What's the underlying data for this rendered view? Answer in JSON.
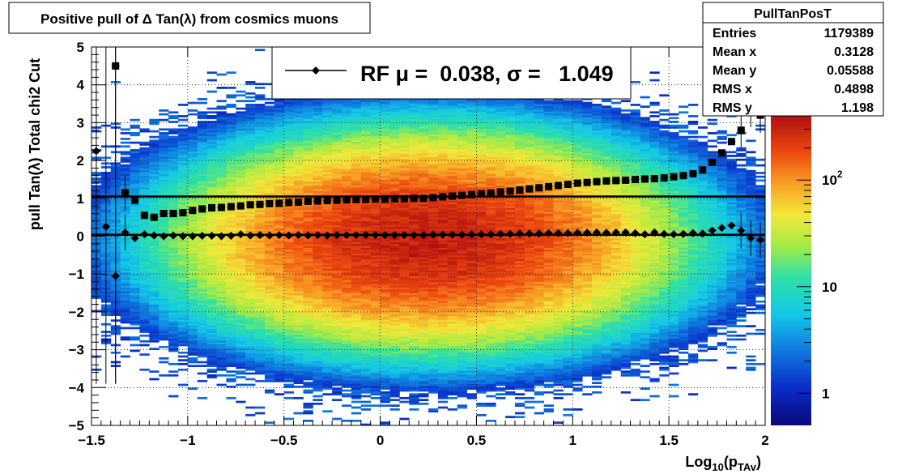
{
  "chart_data": {
    "type": "heatmap",
    "title": "Positive pull of Δ Tan(λ) from cosmics muons",
    "xlabel": "Log",
    "xlabel_sub": "10",
    "xlabel_tail": "(p",
    "xlabel_sub2": "TAv",
    "xlabel_close": ")",
    "ylabel": "pull Tan(λ)  Total chi2 Cut",
    "xlim": [
      -1.5,
      2.0
    ],
    "ylim": [
      -5,
      5
    ],
    "xticks": [
      -1.5,
      -1,
      -0.5,
      0,
      0.5,
      1,
      1.5,
      2
    ],
    "xtick_labels": [
      "−1.5",
      "−1",
      "−0.5",
      "0",
      "0.5",
      "1",
      "1.5",
      "2"
    ],
    "yticks": [
      5,
      4,
      3,
      2,
      1,
      0,
      -1,
      -2,
      -3,
      -4,
      -5
    ],
    "ytick_labels": [
      "5",
      "4",
      "3",
      "2",
      "1",
      "0",
      "−1",
      "−2",
      "−3",
      "−4",
      "−5"
    ],
    "grid": true,
    "colorbar": {
      "scale": "log",
      "range": [
        0.5,
        400
      ],
      "labels": [
        {
          "value": 1,
          "text": "1"
        },
        {
          "value": 10,
          "text": "10"
        },
        {
          "value": 100,
          "text": "10",
          "exp": "2"
        }
      ]
    },
    "stats_box": {
      "title": "PullTanPosT",
      "rows": [
        {
          "label": "Entries",
          "value": "1179389"
        },
        {
          "label": "Mean x",
          "value": "0.3128"
        },
        {
          "label": "Mean y",
          "value": "0.05588"
        },
        {
          "label": "RMS x",
          "value": "0.4898"
        },
        {
          "label": "RMS y",
          "value": "1.198"
        }
      ]
    },
    "legend": {
      "placement": "top-center",
      "text": "RF μ =  0.038, σ =   1.049"
    },
    "distribution": {
      "x_center": 0.25,
      "x_sigma": 0.55,
      "y_mean": -0.1,
      "y_sigma": 1.2,
      "peak": 330
    },
    "series": [
      {
        "name": "sigma",
        "marker": "square",
        "points": [
          [
            -1.375,
            4.5
          ],
          [
            -1.325,
            1.15
          ],
          [
            -1.275,
            0.95
          ],
          [
            -1.225,
            0.55
          ],
          [
            -1.175,
            0.5
          ],
          [
            -1.125,
            0.6
          ],
          [
            -1.075,
            0.6
          ],
          [
            -1.025,
            0.62
          ],
          [
            -0.975,
            0.68
          ],
          [
            -0.925,
            0.72
          ],
          [
            -0.875,
            0.75
          ],
          [
            -0.825,
            0.76
          ],
          [
            -0.775,
            0.78
          ],
          [
            -0.725,
            0.8
          ],
          [
            -0.675,
            0.83
          ],
          [
            -0.625,
            0.84
          ],
          [
            -0.575,
            0.86
          ],
          [
            -0.525,
            0.87
          ],
          [
            -0.475,
            0.89
          ],
          [
            -0.425,
            0.9
          ],
          [
            -0.375,
            0.92
          ],
          [
            -0.325,
            0.93
          ],
          [
            -0.275,
            0.94
          ],
          [
            -0.225,
            0.95
          ],
          [
            -0.175,
            0.96
          ],
          [
            -0.125,
            0.97
          ],
          [
            -0.075,
            0.97
          ],
          [
            -0.025,
            0.98
          ],
          [
            0.025,
            0.98
          ],
          [
            0.075,
            0.99
          ],
          [
            0.125,
            0.99
          ],
          [
            0.175,
            1.0
          ],
          [
            0.225,
            1.0
          ],
          [
            0.275,
            1.02
          ],
          [
            0.325,
            1.04
          ],
          [
            0.375,
            1.06
          ],
          [
            0.425,
            1.08
          ],
          [
            0.475,
            1.1
          ],
          [
            0.525,
            1.12
          ],
          [
            0.575,
            1.14
          ],
          [
            0.625,
            1.17
          ],
          [
            0.675,
            1.19
          ],
          [
            0.725,
            1.22
          ],
          [
            0.775,
            1.25
          ],
          [
            0.825,
            1.28
          ],
          [
            0.875,
            1.31
          ],
          [
            0.925,
            1.34
          ],
          [
            0.975,
            1.37
          ],
          [
            1.025,
            1.4
          ],
          [
            1.075,
            1.42
          ],
          [
            1.125,
            1.44
          ],
          [
            1.175,
            1.46
          ],
          [
            1.225,
            1.47
          ],
          [
            1.275,
            1.48
          ],
          [
            1.325,
            1.5
          ],
          [
            1.375,
            1.51
          ],
          [
            1.425,
            1.52
          ],
          [
            1.475,
            1.54
          ],
          [
            1.525,
            1.57
          ],
          [
            1.575,
            1.6
          ],
          [
            1.625,
            1.65
          ],
          [
            1.675,
            1.75
          ],
          [
            1.725,
            1.95
          ],
          [
            1.775,
            2.2
          ],
          [
            1.825,
            2.5
          ],
          [
            1.875,
            2.8
          ],
          [
            1.925,
            3.35
          ],
          [
            1.975,
            3.2
          ]
        ]
      },
      {
        "name": "mu",
        "marker": "diamond",
        "points": [
          [
            -1.475,
            2.25
          ],
          [
            -1.425,
            0.25
          ],
          [
            -1.375,
            -1.05
          ],
          [
            -1.325,
            0.1
          ],
          [
            -1.275,
            -0.05
          ],
          [
            -1.225,
            0.05
          ],
          [
            -1.175,
            0.02
          ],
          [
            -1.125,
            0.0
          ],
          [
            -1.075,
            0.02
          ],
          [
            -1.025,
            0.0
          ],
          [
            -0.975,
            0.0
          ],
          [
            -0.925,
            0.01
          ],
          [
            -0.875,
            0.01
          ],
          [
            -0.825,
            0.0
          ],
          [
            -0.775,
            0.01
          ],
          [
            -0.725,
            0.05
          ],
          [
            -0.675,
            0.02
          ],
          [
            -0.625,
            0.03
          ],
          [
            -0.575,
            0.02
          ],
          [
            -0.525,
            0.03
          ],
          [
            -0.475,
            0.02
          ],
          [
            -0.425,
            0.03
          ],
          [
            -0.375,
            0.02
          ],
          [
            -0.325,
            0.03
          ],
          [
            -0.275,
            0.02
          ],
          [
            -0.225,
            0.03
          ],
          [
            -0.175,
            0.03
          ],
          [
            -0.125,
            0.03
          ],
          [
            -0.075,
            0.03
          ],
          [
            -0.025,
            0.03
          ],
          [
            0.025,
            0.03
          ],
          [
            0.075,
            0.03
          ],
          [
            0.125,
            0.03
          ],
          [
            0.175,
            0.03
          ],
          [
            0.225,
            0.03
          ],
          [
            0.275,
            0.04
          ],
          [
            0.325,
            0.04
          ],
          [
            0.375,
            0.04
          ],
          [
            0.425,
            0.04
          ],
          [
            0.475,
            0.05
          ],
          [
            0.525,
            0.05
          ],
          [
            0.575,
            0.05
          ],
          [
            0.625,
            0.06
          ],
          [
            0.675,
            0.06
          ],
          [
            0.725,
            0.07
          ],
          [
            0.775,
            0.07
          ],
          [
            0.825,
            0.07
          ],
          [
            0.875,
            0.08
          ],
          [
            0.925,
            0.08
          ],
          [
            0.975,
            0.08
          ],
          [
            1.025,
            0.09
          ],
          [
            1.075,
            0.09
          ],
          [
            1.125,
            0.1
          ],
          [
            1.175,
            0.09
          ],
          [
            1.225,
            0.1
          ],
          [
            1.275,
            0.1
          ],
          [
            1.325,
            0.08
          ],
          [
            1.375,
            0.05
          ],
          [
            1.425,
            0.1
          ],
          [
            1.475,
            0.06
          ],
          [
            1.525,
            0.05
          ],
          [
            1.575,
            0.06
          ],
          [
            1.625,
            0.08
          ],
          [
            1.675,
            0.07
          ],
          [
            1.725,
            0.15
          ],
          [
            1.775,
            0.22
          ],
          [
            1.825,
            0.28
          ],
          [
            1.875,
            0.15
          ],
          [
            1.925,
            -0.05
          ],
          [
            1.975,
            -0.1
          ]
        ]
      }
    ],
    "fit_lines": [
      {
        "y": 0.038
      },
      {
        "y": 1.049
      }
    ]
  }
}
